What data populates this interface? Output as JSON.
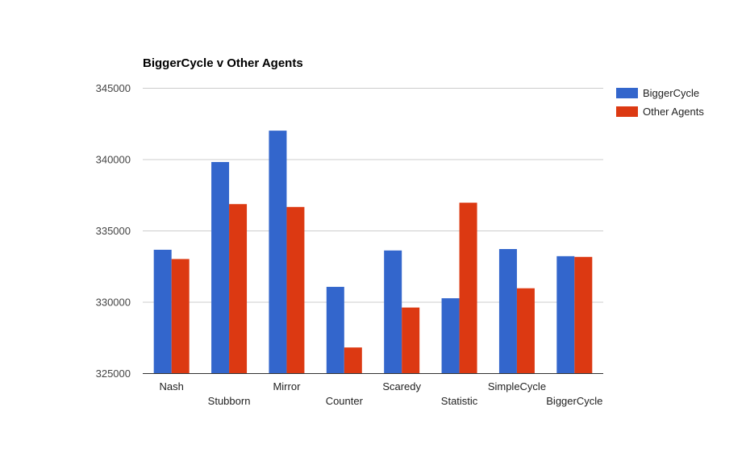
{
  "chart_data": {
    "type": "bar",
    "title": "BiggerCycle v Other Agents",
    "xlabel": "",
    "ylabel": "",
    "categories": [
      "Nash",
      "Stubborn",
      "Mirror",
      "Counter",
      "Scaredy",
      "Statistic",
      "SimpleCycle",
      "BiggerCycle"
    ],
    "series": [
      {
        "name": "BiggerCycle",
        "color": "#3366cc",
        "values": [
          333650,
          339800,
          342000,
          331050,
          333600,
          330250,
          333700,
          333200
        ]
      },
      {
        "name": "Other Agents",
        "color": "#dc3912",
        "values": [
          333000,
          336850,
          336650,
          326800,
          329600,
          336950,
          330950,
          333150
        ]
      }
    ],
    "ylim": [
      325000,
      345000
    ],
    "yticks": [
      "325000",
      "330000",
      "335000",
      "340000",
      "345000"
    ],
    "grid": true,
    "legend": "right"
  }
}
